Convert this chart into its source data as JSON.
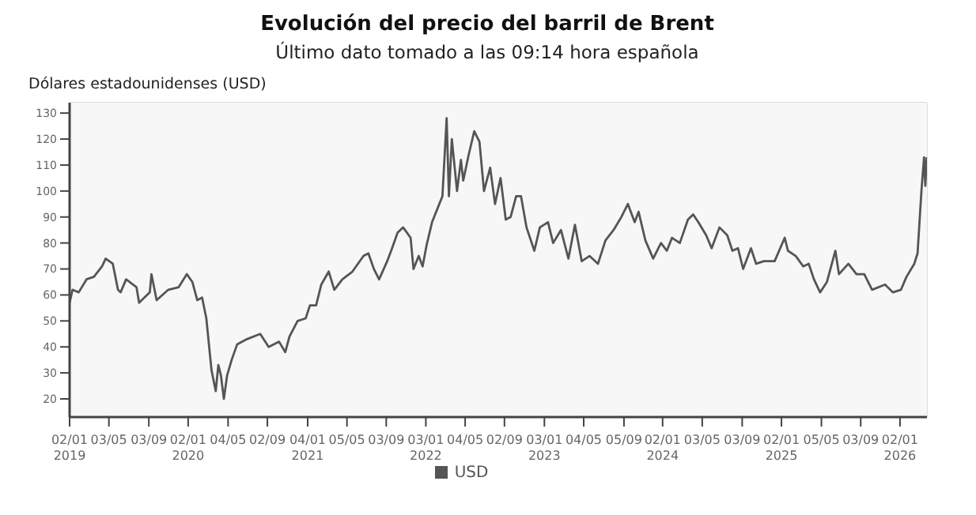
{
  "chart_data": {
    "type": "line",
    "title": "Evolución del precio del barril de Brent",
    "subtitle": "Último dato tomado a las 09:14 hora española",
    "ylabel": "Dólares estadounidenses (USD)",
    "x": [
      "2019-01-02",
      "2019-01-11",
      "2019-01-30",
      "2019-02-23",
      "2019-03-18",
      "2019-04-12",
      "2019-04-23",
      "2019-05-15",
      "2019-05-31",
      "2019-06-08",
      "2019-06-25",
      "2019-07-27",
      "2019-08-04",
      "2019-09-06",
      "2019-09-11",
      "2019-09-27",
      "2019-11-02",
      "2019-12-04",
      "2019-12-29",
      "2020-01-15",
      "2020-01-30",
      "2020-02-14",
      "2020-02-27",
      "2020-03-14",
      "2020-03-27",
      "2020-04-04",
      "2020-04-12",
      "2020-04-21",
      "2020-05-01",
      "2020-05-15",
      "2020-06-01",
      "2020-07-01",
      "2020-08-11",
      "2020-09-06",
      "2020-10-08",
      "2020-10-27",
      "2020-11-09",
      "2020-12-04",
      "2020-12-29",
      "2021-01-11",
      "2021-01-30",
      "2021-02-15",
      "2021-03-10",
      "2021-03-27",
      "2021-04-21",
      "2021-05-22",
      "2021-06-25",
      "2021-07-10",
      "2021-07-27",
      "2021-08-12",
      "2021-09-06",
      "2021-09-21",
      "2021-10-08",
      "2021-10-25",
      "2021-11-17",
      "2021-11-26",
      "2021-12-12",
      "2021-12-24",
      "2022-01-05",
      "2022-01-22",
      "2022-02-07",
      "2022-02-23",
      "2022-03-08",
      "2022-03-15",
      "2022-03-24",
      "2022-04-09",
      "2022-04-21",
      "2022-04-28",
      "2022-05-15",
      "2022-06-01",
      "2022-06-17",
      "2022-07-01",
      "2022-07-20",
      "2022-08-04",
      "2022-08-21",
      "2022-09-06",
      "2022-09-21",
      "2022-10-08",
      "2022-10-23",
      "2022-11-09",
      "2022-12-03",
      "2022-12-20",
      "2023-01-14",
      "2023-01-30",
      "2023-02-23",
      "2023-03-18",
      "2023-04-07",
      "2023-04-28",
      "2023-05-22",
      "2023-06-17",
      "2023-07-10",
      "2023-08-04",
      "2023-08-28",
      "2023-09-17",
      "2023-10-08",
      "2023-10-20",
      "2023-11-10",
      "2023-12-04",
      "2023-12-28",
      "2024-01-15",
      "2024-01-31",
      "2024-02-24",
      "2024-03-20",
      "2024-04-05",
      "2024-04-21",
      "2024-05-15",
      "2024-06-01",
      "2024-06-25",
      "2024-07-19",
      "2024-08-04",
      "2024-08-21",
      "2024-09-06",
      "2024-09-30",
      "2024-10-16",
      "2024-11-09",
      "2024-12-12",
      "2025-01-12",
      "2025-01-22",
      "2025-02-15",
      "2025-03-10",
      "2025-03-27",
      "2025-04-12",
      "2025-05-01",
      "2025-05-22",
      "2025-06-17",
      "2025-06-28",
      "2025-07-27",
      "2025-08-21",
      "2025-09-14",
      "2025-10-08",
      "2025-11-17",
      "2025-12-11",
      "2026-01-05",
      "2026-01-22",
      "2026-02-15",
      "2026-02-25",
      "2026-03-03",
      "2026-03-09",
      "2026-03-17",
      "2026-03-21",
      "2026-03-25"
    ],
    "series": [
      {
        "name": "USD",
        "color": "#555555",
        "values": [
          57,
          62,
          61,
          66,
          67,
          71,
          74,
          72,
          62,
          61,
          66,
          63,
          57,
          61,
          68,
          58,
          62,
          63,
          68,
          65,
          58,
          59,
          51,
          31,
          23,
          33,
          29,
          20,
          29,
          35,
          41,
          43,
          45,
          40,
          42,
          38,
          44,
          50,
          51,
          56,
          56,
          64,
          69,
          62,
          66,
          69,
          75,
          76,
          70,
          66,
          73,
          78,
          84,
          86,
          82,
          70,
          75,
          71,
          79,
          88,
          93,
          98,
          128,
          98,
          120,
          100,
          112,
          104,
          114,
          123,
          119,
          100,
          109,
          95,
          105,
          89,
          90,
          98,
          98,
          86,
          77,
          86,
          88,
          80,
          85,
          74,
          87,
          73,
          75,
          72,
          81,
          85,
          90,
          95,
          88,
          92,
          81,
          74,
          80,
          77,
          82,
          80,
          89,
          91,
          88,
          83,
          78,
          86,
          83,
          77,
          78,
          70,
          78,
          72,
          73,
          73,
          82,
          77,
          75,
          71,
          72,
          66,
          61,
          65,
          77,
          68,
          72,
          68,
          68,
          62,
          64,
          61,
          62,
          67,
          72,
          76,
          88,
          100,
          113,
          102,
          113
        ]
      }
    ],
    "xlim": [
      "2019-01-02",
      "2026-03-26"
    ],
    "xticks": [
      {
        "value": "2019-01-02",
        "label": "02/01\n2019"
      },
      {
        "value": "2019-05-03",
        "label": "03/05"
      },
      {
        "value": "2019-09-03",
        "label": "03/09"
      },
      {
        "value": "2020-01-02",
        "label": "02/01\n2020"
      },
      {
        "value": "2020-05-04",
        "label": "04/05"
      },
      {
        "value": "2020-09-02",
        "label": "02/09"
      },
      {
        "value": "2021-01-04",
        "label": "04/01\n2021"
      },
      {
        "value": "2021-05-05",
        "label": "05/05"
      },
      {
        "value": "2021-09-03",
        "label": "03/09"
      },
      {
        "value": "2022-01-03",
        "label": "03/01\n2022"
      },
      {
        "value": "2022-05-04",
        "label": "04/05"
      },
      {
        "value": "2022-09-02",
        "label": "02/09"
      },
      {
        "value": "2023-01-03",
        "label": "03/01\n2023"
      },
      {
        "value": "2023-05-04",
        "label": "04/05"
      },
      {
        "value": "2023-09-05",
        "label": "05/09"
      },
      {
        "value": "2024-01-02",
        "label": "02/01\n2024"
      },
      {
        "value": "2024-05-03",
        "label": "03/05"
      },
      {
        "value": "2024-09-03",
        "label": "03/09"
      },
      {
        "value": "2025-01-02",
        "label": "02/01\n2025"
      },
      {
        "value": "2025-05-05",
        "label": "05/05"
      },
      {
        "value": "2025-09-03",
        "label": "03/09"
      },
      {
        "value": "2026-01-02",
        "label": "02/01\n2026"
      }
    ],
    "ylim": [
      13,
      134
    ],
    "yticks": [
      20,
      30,
      40,
      50,
      60,
      70,
      80,
      90,
      100,
      110,
      120,
      130
    ],
    "grid": true,
    "legend": "bottom",
    "marker": "none",
    "line_style": "solid"
  }
}
